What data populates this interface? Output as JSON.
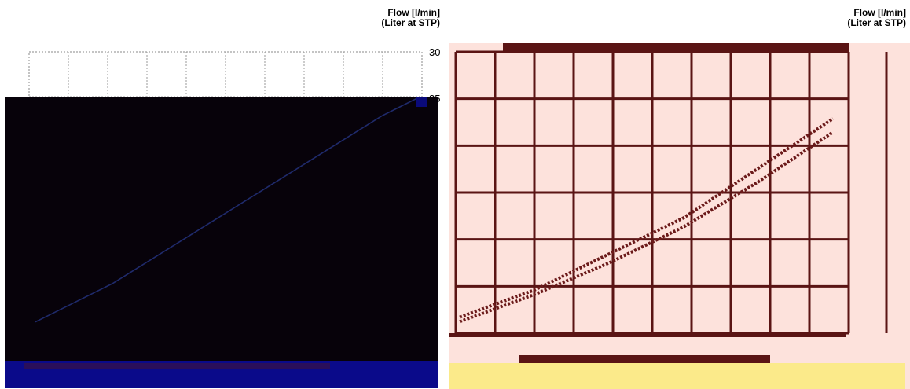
{
  "chart_data": [
    {
      "type": "line",
      "ylabel_line1": "Flow [l/min]",
      "ylabel_line2": "(Liter at STP)",
      "y_ticks": [
        "30",
        "25"
      ],
      "ylim": [
        0,
        30
      ],
      "grid": true,
      "series": [
        {
          "color": "#1f2a6b",
          "points": [
            [
              0.0,
              1.5
            ],
            [
              0.1,
              3.5
            ],
            [
              0.2,
              5.5
            ],
            [
              0.3,
              8.0
            ],
            [
              0.4,
              10.5
            ],
            [
              0.5,
              13.0
            ],
            [
              0.6,
              15.5
            ],
            [
              0.7,
              18.0
            ],
            [
              0.8,
              20.5
            ],
            [
              0.9,
              23.0
            ],
            [
              1.0,
              25.0
            ]
          ]
        }
      ],
      "colors": {
        "occluder": "#07020a",
        "footer_band": "#0a0a8a",
        "curve": "#1f2a6b"
      }
    },
    {
      "type": "line",
      "ylabel_line1": "Flow [l/min]",
      "ylabel_line2": "(Liter at STP)",
      "grid": true,
      "series": [
        {
          "color": "#6b1a1a",
          "points": [
            [
              0.0,
              1.0
            ],
            [
              0.2,
              4.0
            ],
            [
              0.4,
              8.0
            ],
            [
              0.6,
              12.0
            ],
            [
              0.8,
              17.5
            ],
            [
              1.0,
              23.0
            ]
          ]
        },
        {
          "color": "#6b1a1a",
          "points": [
            [
              0.0,
              0.5
            ],
            [
              0.2,
              3.5
            ],
            [
              0.4,
              7.0
            ],
            [
              0.6,
              11.0
            ],
            [
              0.8,
              16.0
            ],
            [
              1.0,
              21.5
            ]
          ]
        }
      ],
      "colors": {
        "plot_bg": "#fde2dc",
        "grid": "#5a1414",
        "footer_band": "#fbea8a"
      }
    }
  ]
}
